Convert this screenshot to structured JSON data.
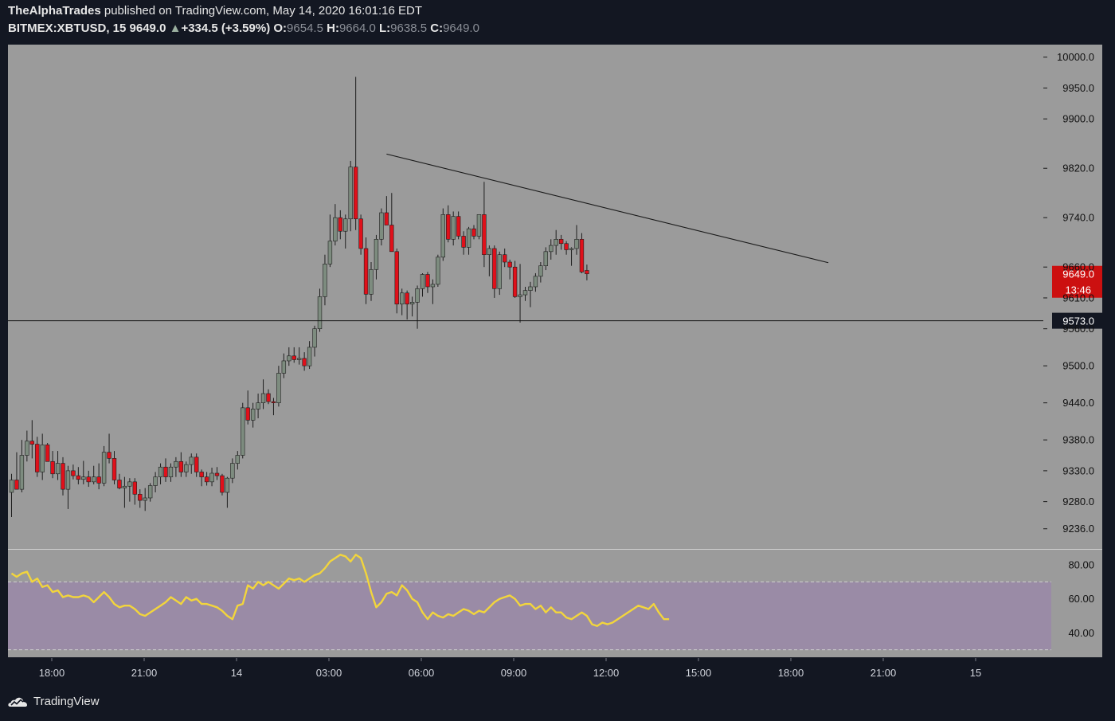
{
  "header": {
    "publisher": "TheAlphaTrades",
    "published_text": " published on TradingView.com, May 14, 2020 16:01:16 EDT",
    "symbol": "BITMEX:XBTUSD, 15",
    "last": "9649.0",
    "change_arrow": "▲",
    "change": "+334.5 (+3.59%)",
    "o_label": "O:",
    "o_value": "9654.5",
    "h_label": "H:",
    "h_value": "9664.0",
    "l_label": "L:",
    "l_value": "9638.5",
    "c_label": "C:",
    "c_value": "9649.0"
  },
  "footer": {
    "brand": "TradingView"
  },
  "colors": {
    "background": "#131722",
    "pane": "#9b9b9b",
    "rsi_band": "#9a8ba6",
    "up_candle": "#7d8c7f",
    "down_candle": "#e0101a",
    "rsi_line": "#f2d53c",
    "trendline": "#1a1a1a",
    "current_price_tag": "#cc1010"
  },
  "chart_data": {
    "type": "candlestick",
    "symbol": "BITMEX:XBTUSD",
    "interval": "15",
    "price_axis": {
      "ticks": [
        "10000.0",
        "9950.0",
        "9900.0",
        "9820.0",
        "9740.0",
        "9660.0",
        "9610.0",
        "9560.0",
        "9500.0",
        "9440.0",
        "9380.0",
        "9330.0",
        "9280.0",
        "9236.0"
      ],
      "range": [
        9215,
        10010
      ]
    },
    "time_axis": {
      "ticks": [
        "18:00",
        "21:00",
        "14",
        "03:00",
        "06:00",
        "09:00",
        "12:00",
        "15:00",
        "18:00",
        "21:00",
        "15"
      ]
    },
    "current_price": {
      "value": "9649.0",
      "countdown": "13:46"
    },
    "horizontal_line": {
      "value": "9573.0"
    },
    "trendline": {
      "from": {
        "bar": 73,
        "price": 9843
      },
      "to": {
        "bar": 159,
        "price": 9667
      }
    },
    "candles": [
      {
        "o": 9295,
        "h": 9325,
        "l": 9255,
        "c": 9315
      },
      {
        "o": 9315,
        "h": 9360,
        "l": 9300,
        "c": 9300
      },
      {
        "o": 9300,
        "h": 9380,
        "l": 9295,
        "c": 9355
      },
      {
        "o": 9355,
        "h": 9395,
        "l": 9345,
        "c": 9378
      },
      {
        "o": 9378,
        "h": 9412,
        "l": 9350,
        "c": 9373
      },
      {
        "o": 9373,
        "h": 9385,
        "l": 9320,
        "c": 9328
      },
      {
        "o": 9328,
        "h": 9390,
        "l": 9315,
        "c": 9372
      },
      {
        "o": 9372,
        "h": 9375,
        "l": 9345,
        "c": 9345
      },
      {
        "o": 9345,
        "h": 9362,
        "l": 9318,
        "c": 9325
      },
      {
        "o": 9325,
        "h": 9362,
        "l": 9315,
        "c": 9342
      },
      {
        "o": 9342,
        "h": 9352,
        "l": 9290,
        "c": 9300
      },
      {
        "o": 9300,
        "h": 9338,
        "l": 9268,
        "c": 9330
      },
      {
        "o": 9330,
        "h": 9340,
        "l": 9316,
        "c": 9322
      },
      {
        "o": 9322,
        "h": 9336,
        "l": 9308,
        "c": 9316
      },
      {
        "o": 9316,
        "h": 9346,
        "l": 9308,
        "c": 9320
      },
      {
        "o": 9320,
        "h": 9330,
        "l": 9304,
        "c": 9312
      },
      {
        "o": 9312,
        "h": 9338,
        "l": 9308,
        "c": 9320
      },
      {
        "o": 9320,
        "h": 9342,
        "l": 9300,
        "c": 9310
      },
      {
        "o": 9310,
        "h": 9370,
        "l": 9305,
        "c": 9360
      },
      {
        "o": 9360,
        "h": 9390,
        "l": 9342,
        "c": 9350
      },
      {
        "o": 9350,
        "h": 9362,
        "l": 9308,
        "c": 9315
      },
      {
        "o": 9315,
        "h": 9325,
        "l": 9300,
        "c": 9302
      },
      {
        "o": 9302,
        "h": 9320,
        "l": 9270,
        "c": 9305
      },
      {
        "o": 9305,
        "h": 9318,
        "l": 9280,
        "c": 9312
      },
      {
        "o": 9312,
        "h": 9318,
        "l": 9275,
        "c": 9292
      },
      {
        "o": 9292,
        "h": 9300,
        "l": 9270,
        "c": 9282
      },
      {
        "o": 9282,
        "h": 9302,
        "l": 9265,
        "c": 9286
      },
      {
        "o": 9286,
        "h": 9310,
        "l": 9280,
        "c": 9306
      },
      {
        "o": 9306,
        "h": 9328,
        "l": 9295,
        "c": 9320
      },
      {
        "o": 9320,
        "h": 9342,
        "l": 9308,
        "c": 9336
      },
      {
        "o": 9336,
        "h": 9350,
        "l": 9312,
        "c": 9320
      },
      {
        "o": 9320,
        "h": 9342,
        "l": 9312,
        "c": 9336
      },
      {
        "o": 9336,
        "h": 9352,
        "l": 9320,
        "c": 9345
      },
      {
        "o": 9345,
        "h": 9360,
        "l": 9320,
        "c": 9328
      },
      {
        "o": 9328,
        "h": 9345,
        "l": 9320,
        "c": 9340
      },
      {
        "o": 9340,
        "h": 9358,
        "l": 9325,
        "c": 9352
      },
      {
        "o": 9352,
        "h": 9358,
        "l": 9320,
        "c": 9328
      },
      {
        "o": 9328,
        "h": 9332,
        "l": 9305,
        "c": 9320
      },
      {
        "o": 9320,
        "h": 9328,
        "l": 9306,
        "c": 9312
      },
      {
        "o": 9312,
        "h": 9335,
        "l": 9305,
        "c": 9326
      },
      {
        "o": 9326,
        "h": 9336,
        "l": 9315,
        "c": 9322
      },
      {
        "o": 9322,
        "h": 9325,
        "l": 9290,
        "c": 9295
      },
      {
        "o": 9295,
        "h": 9320,
        "l": 9270,
        "c": 9318
      },
      {
        "o": 9318,
        "h": 9350,
        "l": 9310,
        "c": 9342
      },
      {
        "o": 9342,
        "h": 9362,
        "l": 9332,
        "c": 9355
      },
      {
        "o": 9355,
        "h": 9440,
        "l": 9350,
        "c": 9432
      },
      {
        "o": 9432,
        "h": 9460,
        "l": 9405,
        "c": 9412
      },
      {
        "o": 9412,
        "h": 9440,
        "l": 9400,
        "c": 9430
      },
      {
        "o": 9430,
        "h": 9455,
        "l": 9415,
        "c": 9440
      },
      {
        "o": 9440,
        "h": 9478,
        "l": 9430,
        "c": 9455
      },
      {
        "o": 9455,
        "h": 9462,
        "l": 9438,
        "c": 9442
      },
      {
        "o": 9442,
        "h": 9448,
        "l": 9420,
        "c": 9440
      },
      {
        "o": 9440,
        "h": 9500,
        "l": 9434,
        "c": 9488
      },
      {
        "o": 9488,
        "h": 9520,
        "l": 9480,
        "c": 9508
      },
      {
        "o": 9508,
        "h": 9530,
        "l": 9500,
        "c": 9516
      },
      {
        "o": 9516,
        "h": 9530,
        "l": 9505,
        "c": 9510
      },
      {
        "o": 9510,
        "h": 9530,
        "l": 9502,
        "c": 9512
      },
      {
        "o": 9512,
        "h": 9522,
        "l": 9492,
        "c": 9500
      },
      {
        "o": 9500,
        "h": 9540,
        "l": 9495,
        "c": 9530
      },
      {
        "o": 9530,
        "h": 9565,
        "l": 9515,
        "c": 9560
      },
      {
        "o": 9560,
        "h": 9625,
        "l": 9555,
        "c": 9612
      },
      {
        "o": 9612,
        "h": 9680,
        "l": 9598,
        "c": 9665
      },
      {
        "o": 9665,
        "h": 9745,
        "l": 9660,
        "c": 9702
      },
      {
        "o": 9702,
        "h": 9762,
        "l": 9695,
        "c": 9740
      },
      {
        "o": 9740,
        "h": 9752,
        "l": 9705,
        "c": 9718
      },
      {
        "o": 9718,
        "h": 9745,
        "l": 9690,
        "c": 9738
      },
      {
        "o": 9738,
        "h": 9832,
        "l": 9718,
        "c": 9822
      },
      {
        "o": 9822,
        "h": 9968,
        "l": 9720,
        "c": 9738
      },
      {
        "o": 9738,
        "h": 9745,
        "l": 9680,
        "c": 9690
      },
      {
        "o": 9690,
        "h": 9708,
        "l": 9600,
        "c": 9616
      },
      {
        "o": 9616,
        "h": 9668,
        "l": 9605,
        "c": 9656
      },
      {
        "o": 9656,
        "h": 9712,
        "l": 9640,
        "c": 9705
      },
      {
        "o": 9705,
        "h": 9755,
        "l": 9695,
        "c": 9748
      },
      {
        "o": 9748,
        "h": 9775,
        "l": 9730,
        "c": 9728
      },
      {
        "o": 9728,
        "h": 9780,
        "l": 9685,
        "c": 9685
      },
      {
        "o": 9685,
        "h": 9690,
        "l": 9585,
        "c": 9600
      },
      {
        "o": 9600,
        "h": 9625,
        "l": 9582,
        "c": 9618
      },
      {
        "o": 9618,
        "h": 9622,
        "l": 9575,
        "c": 9600
      },
      {
        "o": 9600,
        "h": 9612,
        "l": 9580,
        "c": 9603
      },
      {
        "o": 9603,
        "h": 9630,
        "l": 9560,
        "c": 9625
      },
      {
        "o": 9625,
        "h": 9650,
        "l": 9612,
        "c": 9648
      },
      {
        "o": 9648,
        "h": 9652,
        "l": 9618,
        "c": 9628
      },
      {
        "o": 9628,
        "h": 9640,
        "l": 9600,
        "c": 9632
      },
      {
        "o": 9632,
        "h": 9680,
        "l": 9628,
        "c": 9676
      },
      {
        "o": 9676,
        "h": 9755,
        "l": 9670,
        "c": 9745
      },
      {
        "o": 9745,
        "h": 9760,
        "l": 9700,
        "c": 9705
      },
      {
        "o": 9705,
        "h": 9750,
        "l": 9695,
        "c": 9742
      },
      {
        "o": 9742,
        "h": 9750,
        "l": 9705,
        "c": 9710
      },
      {
        "o": 9710,
        "h": 9718,
        "l": 9680,
        "c": 9692
      },
      {
        "o": 9692,
        "h": 9725,
        "l": 9680,
        "c": 9722
      },
      {
        "o": 9722,
        "h": 9728,
        "l": 9705,
        "c": 9710
      },
      {
        "o": 9710,
        "h": 9745,
        "l": 9705,
        "c": 9745
      },
      {
        "o": 9745,
        "h": 9798,
        "l": 9660,
        "c": 9680
      },
      {
        "o": 9680,
        "h": 9695,
        "l": 9645,
        "c": 9690
      },
      {
        "o": 9690,
        "h": 9695,
        "l": 9610,
        "c": 9625
      },
      {
        "o": 9625,
        "h": 9685,
        "l": 9615,
        "c": 9680
      },
      {
        "o": 9680,
        "h": 9690,
        "l": 9660,
        "c": 9668
      },
      {
        "o": 9668,
        "h": 9672,
        "l": 9640,
        "c": 9660
      },
      {
        "o": 9660,
        "h": 9670,
        "l": 9610,
        "c": 9612
      },
      {
        "o": 9612,
        "h": 9665,
        "l": 9570,
        "c": 9615
      },
      {
        "o": 9615,
        "h": 9628,
        "l": 9605,
        "c": 9622
      },
      {
        "o": 9622,
        "h": 9636,
        "l": 9595,
        "c": 9628
      },
      {
        "o": 9628,
        "h": 9650,
        "l": 9620,
        "c": 9645
      },
      {
        "o": 9645,
        "h": 9668,
        "l": 9635,
        "c": 9662
      },
      {
        "o": 9662,
        "h": 9692,
        "l": 9655,
        "c": 9685
      },
      {
        "o": 9685,
        "h": 9705,
        "l": 9672,
        "c": 9695
      },
      {
        "o": 9695,
        "h": 9720,
        "l": 9680,
        "c": 9705
      },
      {
        "o": 9705,
        "h": 9712,
        "l": 9688,
        "c": 9698
      },
      {
        "o": 9698,
        "h": 9702,
        "l": 9680,
        "c": 9688
      },
      {
        "o": 9688,
        "h": 9692,
        "l": 9662,
        "c": 9690
      },
      {
        "o": 9690,
        "h": 9728,
        "l": 9680,
        "c": 9705
      },
      {
        "o": 9705,
        "h": 9715,
        "l": 9650,
        "c": 9652
      },
      {
        "o": 9654.5,
        "h": 9664,
        "l": 9638.5,
        "c": 9649
      }
    ],
    "rsi": {
      "axis_ticks": [
        "80.00",
        "60.00",
        "40.00"
      ],
      "range": [
        27,
        88
      ],
      "band": [
        30,
        70
      ],
      "values": [
        75,
        73,
        75,
        76,
        70,
        72,
        67,
        68,
        64,
        65,
        61,
        62,
        61,
        61,
        62,
        61,
        58,
        61,
        64,
        61,
        57,
        55,
        56,
        56,
        54,
        51,
        50,
        52,
        54,
        56,
        58,
        61,
        59,
        57,
        61,
        59,
        60,
        57,
        57,
        56,
        55,
        53,
        50,
        48,
        56,
        57,
        68,
        66,
        70,
        68,
        70,
        68,
        66,
        69,
        72,
        71,
        72,
        70,
        72,
        74,
        75,
        78,
        82,
        84,
        86,
        85,
        82,
        86,
        84,
        75,
        64,
        55,
        58,
        63,
        64,
        62,
        68,
        65,
        60,
        58,
        52,
        48,
        52,
        50,
        49,
        51,
        50,
        52,
        54,
        53,
        51,
        53,
        52,
        55,
        58,
        60,
        61,
        62,
        60,
        56,
        57,
        57,
        54,
        56,
        52,
        55,
        52,
        52,
        49,
        48,
        50,
        52,
        50,
        45,
        44,
        46,
        45,
        46,
        48,
        50,
        52,
        54,
        56,
        55,
        54,
        57,
        52,
        48,
        48
      ]
    }
  }
}
